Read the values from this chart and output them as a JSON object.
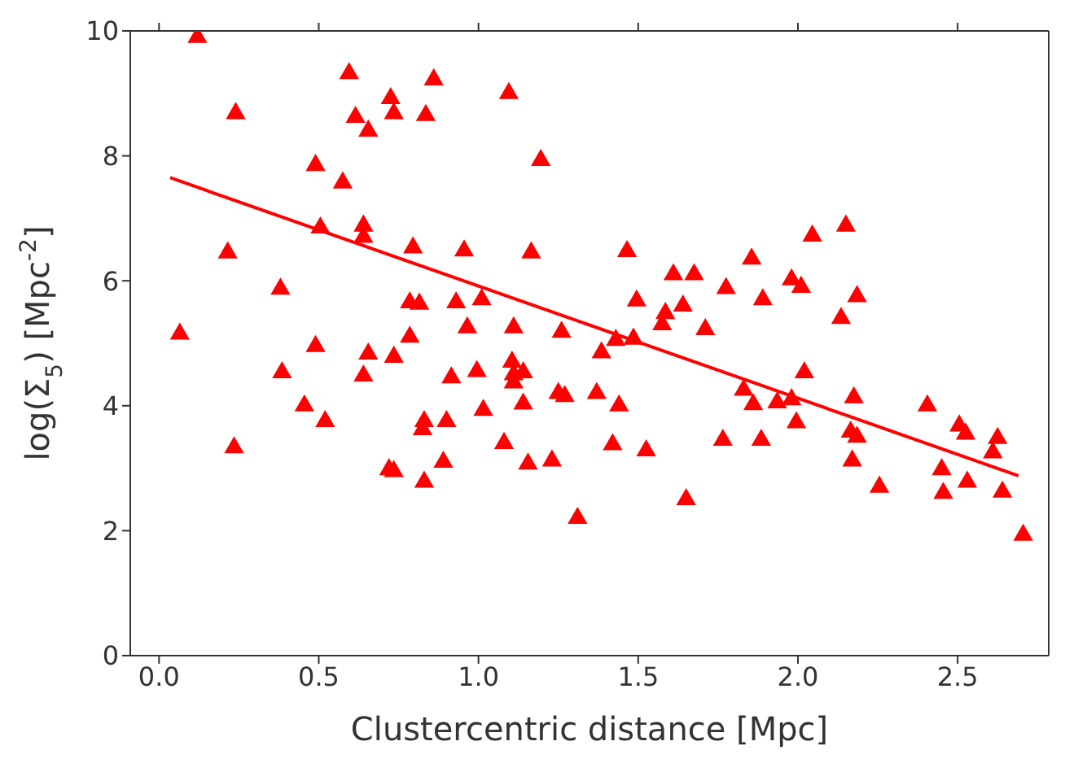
{
  "chart_data": {
    "type": "scatter",
    "xlabel": "Clustercentric distance [Mpc]",
    "ylabel": "log(Σ$_{5}$) [Mpc$^{-2}$]",
    "xlim": [
      -0.09,
      2.785
    ],
    "ylim": [
      0,
      10
    ],
    "xticks": [
      {
        "value": 0,
        "label": "0.0"
      },
      {
        "value": 0.5,
        "label": "0.5"
      },
      {
        "value": 1,
        "label": "1.0"
      },
      {
        "value": 1.5,
        "label": "1.5"
      },
      {
        "value": 2,
        "label": "2.0"
      },
      {
        "value": 2.5,
        "label": "2.5"
      }
    ],
    "yticks": [
      0,
      2,
      4,
      6,
      8,
      10
    ],
    "series": [
      {
        "marker": "triangle",
        "color": "#ff0000",
        "x": [
          0.12,
          0.24,
          0.595,
          0.725,
          0.735,
          0.86,
          0.615,
          0.835,
          0.655,
          1.095,
          1.195,
          0.49,
          0.575,
          0.505,
          0.64,
          0.64,
          0.215,
          0.795,
          0.955,
          1.165,
          0.38,
          0.785,
          0.815,
          0.93,
          1.01,
          0.065,
          0.785,
          0.965,
          1.11,
          1.26,
          0.49,
          0.385,
          0.455,
          0.52,
          0.235,
          0.655,
          0.735,
          0.64,
          0.915,
          0.995,
          1.105,
          1.11,
          1.14,
          1.11,
          1.015,
          1.14,
          0.83,
          0.825,
          0.9,
          1.25,
          1.27,
          1.37,
          1.08,
          0.72,
          0.735,
          0.89,
          1.155,
          1.23,
          0.83,
          1.31,
          1.465,
          1.61,
          1.675,
          1.495,
          1.585,
          1.575,
          1.64,
          1.71,
          1.775,
          1.855,
          1.89,
          1.98,
          2.01,
          2.045,
          2.15,
          2.135,
          2.185,
          1.43,
          1.485,
          1.385,
          1.42,
          1.525,
          1.65,
          1.765,
          1.83,
          1.86,
          1.885,
          1.935,
          1.98,
          1.995,
          2.02,
          2.175,
          2.165,
          2.185,
          2.17,
          2.255,
          2.405,
          2.45,
          2.455,
          2.505,
          2.525,
          2.53,
          2.625,
          2.61,
          2.64,
          2.705,
          1.44
        ],
        "values": [
          9.9,
          8.68,
          9.32,
          8.92,
          8.68,
          9.22,
          8.62,
          8.65,
          8.4,
          9.0,
          7.93,
          7.85,
          7.57,
          6.85,
          6.88,
          6.7,
          6.45,
          6.53,
          6.48,
          6.45,
          5.87,
          5.65,
          5.63,
          5.65,
          5.7,
          5.15,
          5.1,
          5.25,
          5.25,
          5.18,
          4.95,
          4.53,
          4.0,
          3.75,
          3.33,
          4.83,
          4.78,
          4.48,
          4.45,
          4.55,
          4.7,
          4.5,
          4.53,
          4.37,
          3.93,
          4.03,
          3.75,
          3.62,
          3.75,
          4.2,
          4.15,
          4.2,
          3.4,
          2.98,
          2.95,
          3.1,
          3.07,
          3.12,
          2.78,
          2.2,
          6.47,
          6.1,
          6.1,
          5.68,
          5.48,
          5.3,
          5.6,
          5.22,
          5.88,
          6.35,
          5.7,
          6.02,
          5.9,
          6.72,
          6.88,
          5.4,
          5.75,
          5.05,
          5.07,
          4.85,
          3.38,
          3.28,
          2.5,
          3.45,
          4.25,
          4.02,
          3.45,
          4.05,
          4.1,
          3.73,
          4.53,
          4.13,
          3.58,
          3.5,
          3.12,
          2.7,
          4.0,
          2.98,
          2.6,
          3.68,
          3.55,
          2.78,
          3.48,
          3.25,
          2.62,
          1.93,
          4.0
        ]
      },
      {
        "type": "line",
        "marker": "none",
        "color": "#ff0000",
        "x": [
          0.035,
          2.69
        ],
        "values": [
          7.65,
          2.88
        ]
      }
    ]
  }
}
